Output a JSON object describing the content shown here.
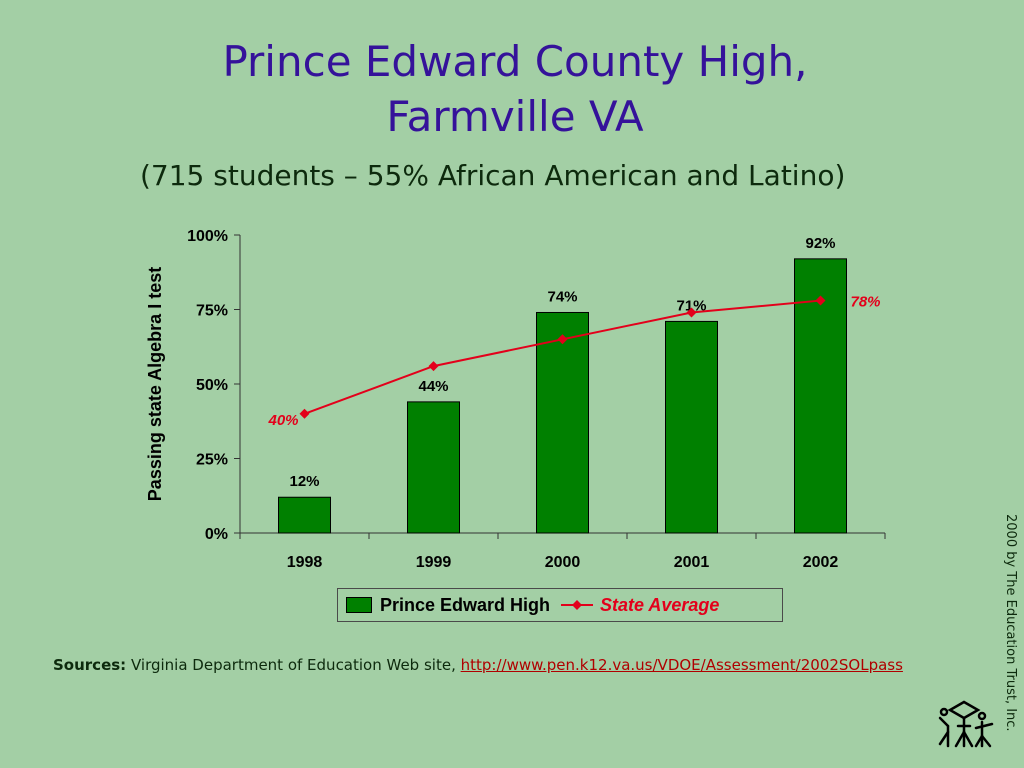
{
  "title_line1": "Prince Edward County High,",
  "title_line2": "Farmville VA",
  "subtitle": "(715 students – 55% African American and Latino)",
  "chart_data": {
    "type": "bar",
    "categories": [
      "1998",
      "1999",
      "2000",
      "2001",
      "2002"
    ],
    "series": [
      {
        "name": "Prince Edward High",
        "kind": "bar",
        "color": "#008000",
        "values": [
          12,
          44,
          74,
          71,
          92
        ],
        "labels": [
          "12%",
          "44%",
          "74%",
          "71%",
          "92%"
        ]
      },
      {
        "name": "State Average",
        "kind": "line",
        "color": "#e3001b",
        "values": [
          40,
          56,
          65,
          74,
          78
        ],
        "labels": [
          "40%",
          "",
          "",
          "",
          "78%"
        ]
      }
    ],
    "ylabel": "Passing state Algebra I test",
    "ylim": [
      0,
      100
    ],
    "yticks": [
      "0%",
      "25%",
      "50%",
      "75%",
      "100%"
    ],
    "legend_position": "bottom"
  },
  "legend": {
    "item1": "Prince Edward High",
    "item2": "State Average"
  },
  "sources": {
    "label": "Sources:",
    "text": "Virginia Department of Education Web site,",
    "url": "http://www.pen.k12.va.us/VDOE/Assessment/2002SOLpass"
  },
  "copyright": "2000 by The Education Trust, Inc.",
  "logo_icon": "education-trust-logo"
}
